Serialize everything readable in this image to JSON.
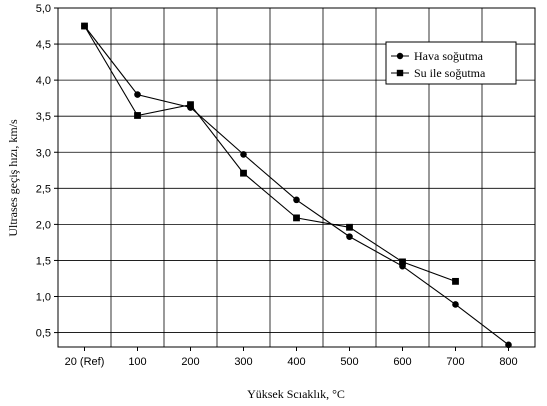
{
  "chart_data": {
    "type": "line",
    "title": "",
    "xlabel": "Yüksek Scıaklık, °C",
    "ylabel": "Ultrases geçiş hızı, km/s",
    "categories": [
      "20 (Ref)",
      "100",
      "200",
      "300",
      "400",
      "500",
      "600",
      "700",
      "800"
    ],
    "y_tick_labels": [
      "0,5",
      "1,0",
      "1,5",
      "2,0",
      "2,5",
      "3,0",
      "3,5",
      "4,0",
      "4,5",
      "5,0"
    ],
    "ylim": [
      0.3,
      5.0
    ],
    "grid": true,
    "legend_position": "top-right",
    "series": [
      {
        "name": "Hava soğutma",
        "marker": "circle",
        "values": [
          4.75,
          3.8,
          3.62,
          2.97,
          2.34,
          1.83,
          1.42,
          0.89,
          0.33
        ]
      },
      {
        "name": "Su ile soğutma",
        "marker": "square",
        "values": [
          4.75,
          3.51,
          3.66,
          2.71,
          2.09,
          1.96,
          1.48,
          1.21,
          null
        ]
      }
    ],
    "colors": {
      "line": "#000000",
      "grid": "#000000",
      "background": "#ffffff"
    }
  }
}
